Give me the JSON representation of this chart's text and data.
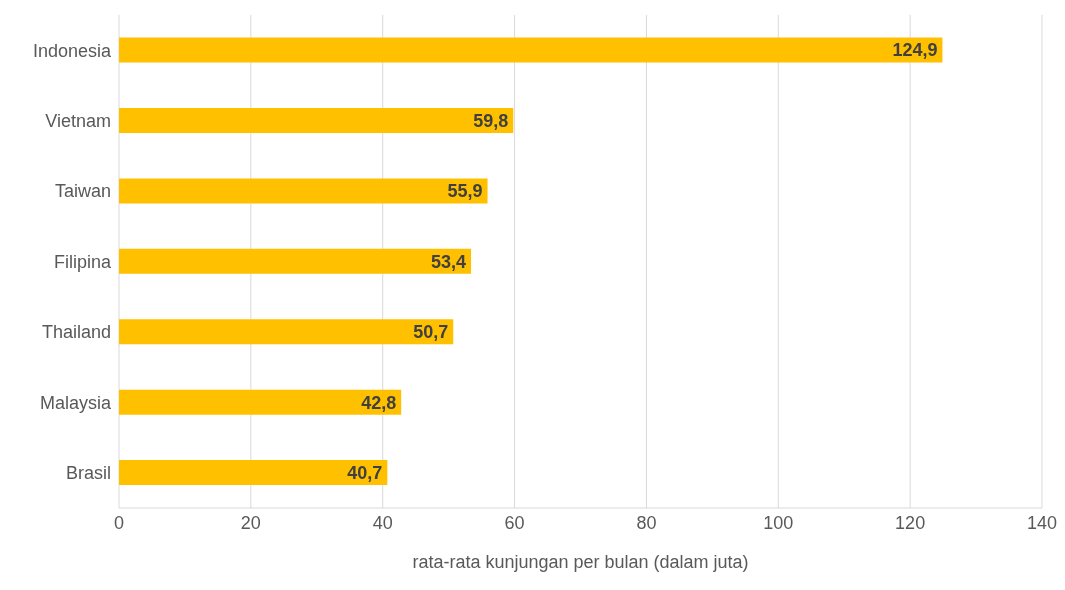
{
  "chart_data": {
    "type": "bar",
    "orientation": "horizontal",
    "categories": [
      "Indonesia",
      "Vietnam",
      "Taiwan",
      "Filipina",
      "Thailand",
      "Malaysia",
      "Brasil"
    ],
    "values": [
      124.9,
      59.8,
      55.9,
      53.4,
      50.7,
      42.8,
      40.7
    ],
    "value_labels": [
      "124,9",
      "59,8",
      "55,9",
      "53,4",
      "50,7",
      "42,8",
      "40,7"
    ],
    "color": "#ffc000",
    "xlabel": "rata-rata kunjungan per bulan (dalam juta)",
    "xlim": [
      0,
      140
    ],
    "xticks": [
      0,
      20,
      40,
      60,
      80,
      100,
      120,
      140
    ],
    "grid": "x"
  }
}
